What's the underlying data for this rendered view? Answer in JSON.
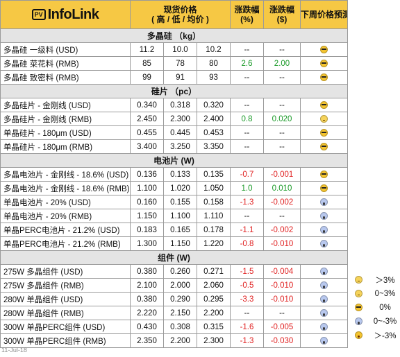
{
  "header": {
    "brand_box": "PV",
    "brand_name": "InfoLink",
    "spot_price": "现货价格",
    "spot_price_sub": "( 高 / 低 / 均价 )",
    "change_pct": "涨跌幅",
    "change_pct_unit": "(%)",
    "change_usd": "涨跌幅",
    "change_usd_unit": "($)",
    "forecast": "下周价格预测"
  },
  "sections": [
    {
      "title": "多晶硅 （kg）",
      "rows": [
        {
          "name": "多晶硅 一级料 (USD)",
          "high": "11.2",
          "low": "10.0",
          "avg": "10.2",
          "pct": "--",
          "abs": "--",
          "trend": "",
          "forecast": "cool"
        },
        {
          "name": "多晶硅 菜花料 (RMB)",
          "high": "85",
          "low": "78",
          "avg": "80",
          "pct": "2.6",
          "abs": "2.00",
          "trend": "up",
          "forecast": "cool"
        },
        {
          "name": "多晶硅 致密料 (RMB)",
          "high": "99",
          "low": "91",
          "avg": "93",
          "pct": "--",
          "abs": "--",
          "trend": "",
          "forecast": "cool"
        }
      ]
    },
    {
      "title": "硅片 （pc）",
      "rows": [
        {
          "name": "多晶硅片 - 金刚线 (USD)",
          "high": "0.340",
          "low": "0.318",
          "avg": "0.320",
          "pct": "--",
          "abs": "--",
          "trend": "",
          "forecast": "cool"
        },
        {
          "name": "多晶硅片 - 金刚线 (RMB)",
          "high": "2.450",
          "low": "2.300",
          "avg": "2.400",
          "pct": "0.8",
          "abs": "0.020",
          "trend": "up",
          "forecast": "neutral"
        },
        {
          "name": "单晶硅片 - 180μm (USD)",
          "high": "0.455",
          "low": "0.445",
          "avg": "0.453",
          "pct": "--",
          "abs": "--",
          "trend": "",
          "forecast": "cool"
        },
        {
          "name": "单晶硅片 - 180μm (RMB)",
          "high": "3.400",
          "low": "3.250",
          "avg": "3.350",
          "pct": "--",
          "abs": "--",
          "trend": "",
          "forecast": "cool"
        }
      ]
    },
    {
      "title": "电池片 (W)",
      "rows": [
        {
          "name": "多晶电池片 - 金刚线 - 18.6% (USD)",
          "high": "0.136",
          "low": "0.133",
          "avg": "0.135",
          "pct": "-0.7",
          "abs": "-0.001",
          "trend": "down",
          "forecast": "cool"
        },
        {
          "name": "多晶电池片 - 金刚线 - 18.6% (RMB)",
          "high": "1.100",
          "low": "1.020",
          "avg": "1.050",
          "pct": "1.0",
          "abs": "0.010",
          "trend": "up",
          "forecast": "cool"
        },
        {
          "name": "单晶电池片 - 20% (USD)",
          "high": "0.160",
          "low": "0.155",
          "avg": "0.158",
          "pct": "-1.3",
          "abs": "-0.002",
          "trend": "down",
          "forecast": "scream"
        },
        {
          "name": "单晶电池片 - 20% (RMB)",
          "high": "1.150",
          "low": "1.100",
          "avg": "1.110",
          "pct": "--",
          "abs": "--",
          "trend": "",
          "forecast": "scream"
        },
        {
          "name": "单晶PERC电池片 - 21.2% (USD)",
          "high": "0.183",
          "low": "0.165",
          "avg": "0.178",
          "pct": "-1.1",
          "abs": "-0.002",
          "trend": "down",
          "forecast": "scream"
        },
        {
          "name": "单晶PERC电池片 - 21.2% (RMB)",
          "high": "1.300",
          "low": "1.150",
          "avg": "1.220",
          "pct": "-0.8",
          "abs": "-0.010",
          "trend": "down",
          "forecast": "scream"
        }
      ]
    },
    {
      "title": "组件 (W)",
      "rows": [
        {
          "name": "275W 多晶组件 (USD)",
          "high": "0.380",
          "low": "0.260",
          "avg": "0.271",
          "pct": "-1.5",
          "abs": "-0.004",
          "trend": "down",
          "forecast": "scream"
        },
        {
          "name": "275W 多晶组件 (RMB)",
          "high": "2.100",
          "low": "2.000",
          "avg": "2.060",
          "pct": "-0.5",
          "abs": "-0.010",
          "trend": "down",
          "forecast": "scream"
        },
        {
          "name": "280W 单晶组件 (USD)",
          "high": "0.380",
          "low": "0.290",
          "avg": "0.295",
          "pct": "-3.3",
          "abs": "-0.010",
          "trend": "down",
          "forecast": "scream"
        },
        {
          "name": "280W 单晶组件 (RMB)",
          "high": "2.220",
          "low": "2.150",
          "avg": "2.200",
          "pct": "--",
          "abs": "--",
          "trend": "",
          "forecast": "scream"
        },
        {
          "name": "300W 单晶PERC组件 (USD)",
          "high": "0.430",
          "low": "0.308",
          "avg": "0.315",
          "pct": "-1.6",
          "abs": "-0.005",
          "trend": "down",
          "forecast": "scream"
        },
        {
          "name": "300W 单晶PERC组件 (RMB)",
          "high": "2.350",
          "low": "2.200",
          "avg": "2.300",
          "pct": "-1.3",
          "abs": "-0.030",
          "trend": "down",
          "forecast": "scream"
        }
      ]
    }
  ],
  "legend": [
    {
      "icon": "neutral",
      "label": "＞3%"
    },
    {
      "icon": "neutral",
      "label": "0~3%"
    },
    {
      "icon": "cool",
      "label": "0%"
    },
    {
      "icon": "scream",
      "label": "0~-3%"
    },
    {
      "icon": "shock",
      "label": "＞-3%"
    }
  ],
  "date": "11-Jul-18",
  "colors": {
    "header_bg": "#f6c844",
    "section_bg": "#e4e4e4",
    "up": "#1a9a28",
    "down": "#e02020"
  }
}
